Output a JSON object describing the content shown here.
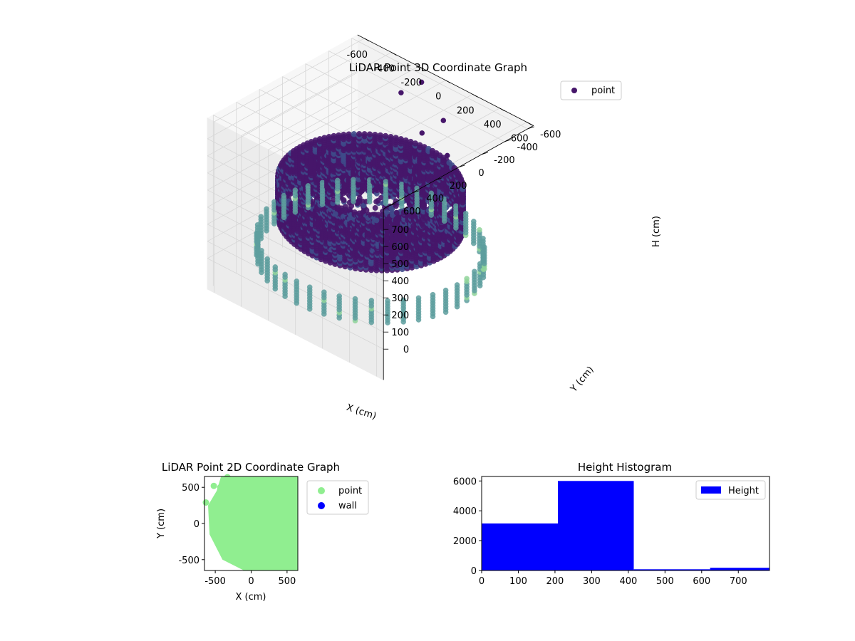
{
  "chart_data": [
    {
      "type": "scatter",
      "projection": "3d",
      "title": "LiDAR Point 3D Coordinate Graph",
      "xlabel": "X (cm)",
      "ylabel": "Y (cm)",
      "zlabel": "H (cm)",
      "xlim": [
        -650,
        650
      ],
      "ylim": [
        -650,
        650
      ],
      "zlim": [
        750,
        0
      ],
      "x_ticks": [
        "-600",
        "-400",
        "-200",
        "0",
        "200",
        "400",
        "600"
      ],
      "y_ticks": [
        "-600",
        "-400",
        "-200",
        "0",
        "200",
        "400",
        "600"
      ],
      "z_ticks": [
        "0",
        "100",
        "200",
        "300",
        "400",
        "500",
        "600",
        "700"
      ],
      "x_tick_values": [
        -600,
        -400,
        -200,
        0,
        200,
        400,
        600
      ],
      "y_tick_values": [
        -600,
        -400,
        -200,
        0,
        200,
        400,
        600
      ],
      "z_tick_values": [
        0,
        100,
        200,
        300,
        400,
        500,
        600,
        700
      ],
      "grid": true,
      "legend": {
        "position": "top-right",
        "entries": [
          "point"
        ]
      },
      "colormap": "viridis",
      "colors": {
        "dense": "#46166a",
        "mid": "#3e4a89",
        "teal": "#5d9e9e",
        "pale": "#8fd49a",
        "isolated": "#2f5e8e"
      },
      "series": [
        {
          "name": "point",
          "rings": [
            {
              "radius": 520,
              "h_top": 240,
              "h_bottom": 470
            },
            {
              "radius": 400,
              "h_top": 250,
              "h_bottom": 460
            },
            {
              "radius": 300,
              "h_top": 260,
              "h_bottom": 450
            }
          ],
          "outer_columns": {
            "radius": 640,
            "h_top": 0,
            "h_bottom": 130
          },
          "isolated_points": [
            {
              "x": -80,
              "y": -540,
              "h": 520
            },
            {
              "x": 90,
              "y": -560,
              "h": 450
            },
            {
              "x": 10,
              "y": -620,
              "h": 600
            },
            {
              "x": -320,
              "y": -640,
              "h": 620
            },
            {
              "x": -220,
              "y": -700,
              "h": 700
            }
          ]
        }
      ]
    },
    {
      "type": "scatter",
      "title": "LiDAR Point 2D Coordinate Graph",
      "xlabel": "X (cm)",
      "ylabel": "Y (cm)",
      "xlim": [
        -650,
        650
      ],
      "ylim": [
        -650,
        650
      ],
      "x_ticks": [
        "-500",
        "0",
        "500"
      ],
      "y_ticks": [
        "500",
        "0",
        "-500"
      ],
      "x_tick_values": [
        -500,
        0,
        500
      ],
      "y_tick_values": [
        500,
        0,
        -500
      ],
      "legend": {
        "position": "outside-right",
        "entries": [
          "point",
          "wall"
        ]
      },
      "colors": {
        "point": "#90ee90",
        "wall": "#0000ff"
      },
      "series": [
        {
          "name": "point",
          "region_outline": [
            [
              -600,
              650
            ],
            [
              650,
              650
            ],
            [
              650,
              100
            ],
            [
              500,
              150
            ],
            [
              600,
              180
            ],
            [
              650,
              100
            ],
            [
              650,
              -650
            ],
            [
              -100,
              -650
            ],
            [
              -400,
              -500
            ],
            [
              -580,
              -150
            ],
            [
              -600,
              250
            ],
            [
              -480,
              450
            ],
            [
              -420,
              650
            ]
          ]
        },
        {
          "name": "wall",
          "values": []
        }
      ]
    },
    {
      "type": "bar",
      "subtype": "histogram",
      "title": "Height Histogram",
      "xlabel": "",
      "ylabel": "",
      "xlim": [
        0,
        785
      ],
      "ylim": [
        0,
        6300
      ],
      "x_ticks": [
        "0",
        "100",
        "200",
        "300",
        "400",
        "500",
        "600",
        "700"
      ],
      "y_ticks": [
        "0",
        "2000",
        "4000",
        "6000"
      ],
      "x_tick_values": [
        0,
        100,
        200,
        300,
        400,
        500,
        600,
        700
      ],
      "y_tick_values": [
        0,
        2000,
        4000,
        6000
      ],
      "legend": {
        "position": "top-right",
        "entries": [
          "Height"
        ]
      },
      "colors": {
        "bar": "#0000ff"
      },
      "series": [
        {
          "name": "Height",
          "bins": [
            [
              0,
              208
            ],
            [
              208,
              415
            ],
            [
              415,
              623
            ],
            [
              623,
              785
            ]
          ],
          "values": [
            3150,
            6000,
            80,
            180
          ]
        }
      ]
    }
  ]
}
